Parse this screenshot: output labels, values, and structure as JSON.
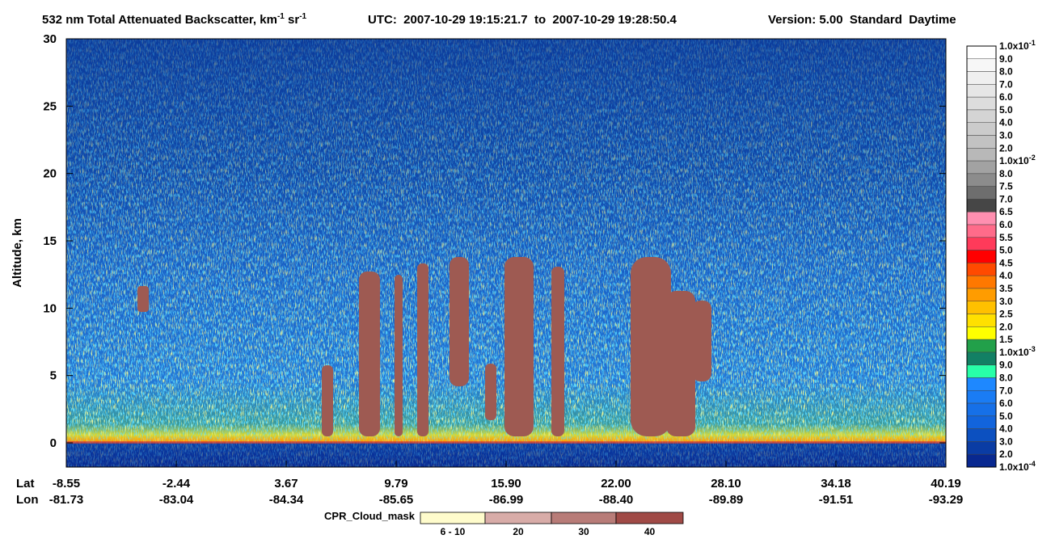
{
  "chart_data": {
    "type": "curtain",
    "title": [
      "532 nm Total Attenuated Backscatter, km",
      "-1",
      " sr",
      "-1"
    ],
    "time_range": "UTC:  2007-10-29 19:15:21.7  to  2007-10-29 19:28:50.4",
    "version": "Version: 5.00  Standard  Daytime",
    "ylabel": "Altitude, km",
    "ylim": [
      -1.8,
      30
    ],
    "yticks": [
      0,
      5,
      10,
      15,
      20,
      25,
      30
    ],
    "grid": false,
    "x_rows": [
      "Lat",
      "Lon"
    ],
    "x_labels": {
      "lat": [
        "-8.55",
        "-2.44",
        "3.67",
        "9.79",
        "15.90",
        "22.00",
        "28.10",
        "34.18",
        "40.19"
      ],
      "lon": [
        "-81.73",
        "-83.04",
        "-84.34",
        "-85.65",
        "-86.99",
        "-88.40",
        "-89.89",
        "-91.51",
        "-93.29"
      ]
    },
    "colorbar": {
      "labels": [
        {
          "text": "1.0x10",
          "sup": "-1"
        },
        "9.0",
        "8.0",
        "7.0",
        "6.0",
        "5.0",
        "4.0",
        "3.0",
        "2.0",
        {
          "text": "1.0x10",
          "sup": "-2"
        },
        "8.0",
        "7.5",
        "7.0",
        "6.5",
        "6.0",
        "5.5",
        "5.0",
        "4.5",
        "4.0",
        "3.5",
        "3.0",
        "2.5",
        "2.0",
        "1.5",
        {
          "text": "1.0x10",
          "sup": "-3"
        },
        "9.0",
        "8.0",
        "7.0",
        "6.0",
        "5.0",
        "4.0",
        "3.0",
        "2.0",
        {
          "text": "1.0x10",
          "sup": "-4"
        }
      ],
      "colors": [
        "#ffffff",
        "#f7f7f7",
        "#efefef",
        "#e6e6e6",
        "#dddddd",
        "#d4d4d4",
        "#cbcbcb",
        "#c2c2c2",
        "#b8b8b8",
        "#a2a2a2",
        "#8c8c8c",
        "#6e6e6e",
        "#464646",
        "#ff8fb0",
        "#ff6b8a",
        "#ff3a5a",
        "#ff0000",
        "#ff4a00",
        "#ff7800",
        "#ff9c00",
        "#ffc000",
        "#ffe000",
        "#ffff00",
        "#22a04a",
        "#128064",
        "#28ffa8",
        "#1e88ff",
        "#1a7cf4",
        "#1670e8",
        "#1264dc",
        "#0c50c0",
        "#0a3ca4",
        "#082890"
      ]
    },
    "cpr_legend": {
      "title": "CPR_Cloud_mask",
      "labels": [
        "6 - 10",
        "20",
        "30",
        "40"
      ],
      "colors": [
        "#fffccc",
        "#d8aca8",
        "#b87c78",
        "#a04a46"
      ]
    }
  }
}
